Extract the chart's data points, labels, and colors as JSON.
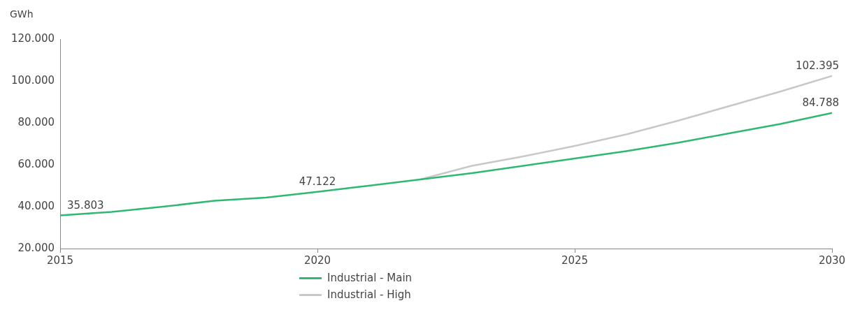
{
  "chart_data": {
    "type": "line",
    "ylabel": "GWh",
    "x": [
      2015,
      2016,
      2017,
      2018,
      2019,
      2020,
      2021,
      2022,
      2023,
      2024,
      2025,
      2026,
      2027,
      2028,
      2029,
      2030
    ],
    "series": [
      {
        "name": "Industrial - Main",
        "color": "#2eb872",
        "values": [
          35803,
          37500,
          40000,
          42800,
          44300,
          47122,
          50000,
          53000,
          56000,
          59500,
          63000,
          66500,
          70500,
          75000,
          79500,
          84788
        ],
        "value_labels": [
          "35.803",
          null,
          null,
          null,
          null,
          "47.122",
          null,
          null,
          null,
          null,
          null,
          null,
          null,
          null,
          null,
          "84.788"
        ]
      },
      {
        "name": "Industrial - High",
        "color": "#c8c8c8",
        "values": [
          null,
          null,
          null,
          null,
          null,
          null,
          null,
          53000,
          59500,
          64000,
          69000,
          74500,
          81000,
          88000,
          95000,
          102395
        ],
        "value_labels": [
          null,
          null,
          null,
          null,
          null,
          null,
          null,
          null,
          null,
          null,
          null,
          null,
          null,
          null,
          null,
          "102.395"
        ]
      }
    ],
    "xlim": [
      2015,
      2030
    ],
    "xticks": [
      2015,
      2020,
      2025,
      2030
    ],
    "ylim": [
      20000,
      120000
    ],
    "yticks": [
      {
        "value": 20000,
        "label": "20.000"
      },
      {
        "value": 40000,
        "label": "40.000"
      },
      {
        "value": 60000,
        "label": "60.000"
      },
      {
        "value": 80000,
        "label": "80.000"
      },
      {
        "value": 100000,
        "label": "100.000"
      },
      {
        "value": 120000,
        "label": "120.000"
      }
    ],
    "grid": false,
    "legend": "bottom",
    "marker": "none",
    "line_style": "solid"
  }
}
